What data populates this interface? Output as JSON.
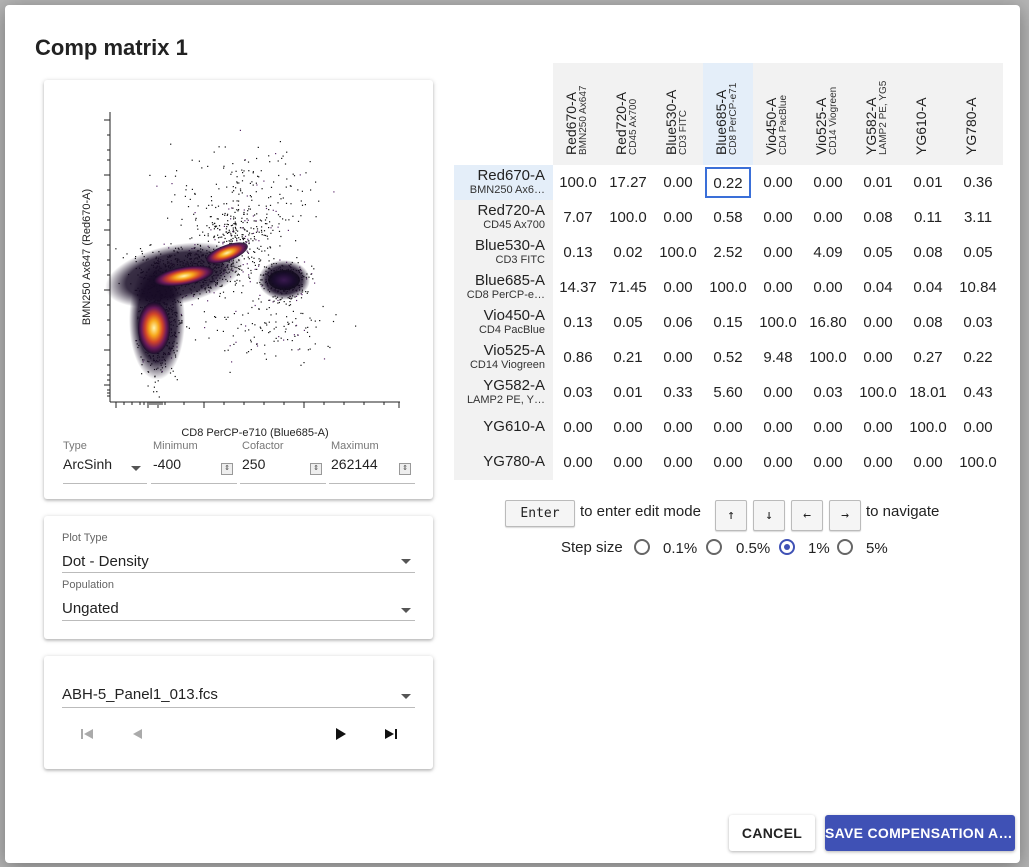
{
  "dialog": {
    "title": "Comp matrix 1"
  },
  "plot": {
    "x_label": "CD8 PerCP-e710 (Blue685-A)",
    "y_label": "BMN250 Ax647 (Red670-A)"
  },
  "axis_settings": {
    "type_label": "Type",
    "type_value": "ArcSinh",
    "min_label": "Minimum",
    "min_value": "-400",
    "cof_label": "Cofactor",
    "cof_value": "250",
    "max_label": "Maximum",
    "max_value": "262144"
  },
  "plot_options": {
    "plot_type_label": "Plot Type",
    "plot_type_value": "Dot - Density",
    "population_label": "Population",
    "population_value": "Ungated"
  },
  "file": {
    "name": "ABH-5_Panel1_013.fcs"
  },
  "matrix": {
    "columns": [
      {
        "main": "Red670-A",
        "sub": "BMN250 Ax647"
      },
      {
        "main": "Red720-A",
        "sub": "CD45 Ax700"
      },
      {
        "main": "Blue530-A",
        "sub": "CD3 FITC"
      },
      {
        "main": "Blue685-A",
        "sub": "CD8 PerCP-e71"
      },
      {
        "main": "Vio450-A",
        "sub": "CD4 PacBlue"
      },
      {
        "main": "Vio525-A",
        "sub": "CD14 Viogreen"
      },
      {
        "main": "YG582-A",
        "sub": "LAMP2 PE, YG5"
      },
      {
        "main": "YG610-A",
        "sub": ""
      },
      {
        "main": "YG780-A",
        "sub": ""
      }
    ],
    "rows": [
      {
        "main": "Red670-A",
        "sub": "BMN250 Ax6…",
        "values": [
          "100.0",
          "17.27",
          "0.00",
          "0.22",
          "0.00",
          "0.00",
          "0.01",
          "0.01",
          "0.36"
        ]
      },
      {
        "main": "Red720-A",
        "sub": "CD45 Ax700",
        "values": [
          "7.07",
          "100.0",
          "0.00",
          "0.58",
          "0.00",
          "0.00",
          "0.08",
          "0.11",
          "3.11"
        ]
      },
      {
        "main": "Blue530-A",
        "sub": "CD3 FITC",
        "values": [
          "0.13",
          "0.02",
          "100.0",
          "2.52",
          "0.00",
          "4.09",
          "0.05",
          "0.08",
          "0.05"
        ]
      },
      {
        "main": "Blue685-A",
        "sub": "CD8 PerCP-e…",
        "values": [
          "14.37",
          "71.45",
          "0.00",
          "100.0",
          "0.00",
          "0.00",
          "0.04",
          "0.04",
          "10.84"
        ]
      },
      {
        "main": "Vio450-A",
        "sub": "CD4 PacBlue",
        "values": [
          "0.13",
          "0.05",
          "0.06",
          "0.15",
          "100.0",
          "16.80",
          "0.00",
          "0.08",
          "0.03"
        ]
      },
      {
        "main": "Vio525-A",
        "sub": "CD14 Viogreen",
        "values": [
          "0.86",
          "0.21",
          "0.00",
          "0.52",
          "9.48",
          "100.0",
          "0.00",
          "0.27",
          "0.22"
        ]
      },
      {
        "main": "YG582-A",
        "sub": "LAMP2 PE, Y…",
        "values": [
          "0.03",
          "0.01",
          "0.33",
          "5.60",
          "0.00",
          "0.03",
          "100.0",
          "18.01",
          "0.43"
        ]
      },
      {
        "main": "YG610-A",
        "sub": "",
        "values": [
          "0.00",
          "0.00",
          "0.00",
          "0.00",
          "0.00",
          "0.00",
          "0.00",
          "100.0",
          "0.00"
        ]
      },
      {
        "main": "YG780-A",
        "sub": "",
        "values": [
          "0.00",
          "0.00",
          "0.00",
          "0.00",
          "0.00",
          "0.00",
          "0.00",
          "0.00",
          "100.0"
        ]
      }
    ]
  },
  "hints": {
    "enter_key": "Enter",
    "enter_text": "to enter edit mode",
    "up_key": "↑",
    "down_key": "↓",
    "left_key": "←",
    "right_key": "→",
    "navigate_text": "to navigate",
    "step_label": "Step size",
    "steps": [
      "0.1%",
      "0.5%",
      "1%",
      "5%"
    ],
    "selected_step": "1%"
  },
  "buttons": {
    "cancel": "CANCEL",
    "save": "SAVE COMPENSATION AS..."
  },
  "colors": {
    "accent": "#3f51b5",
    "selected_cell": "#3a6fd8"
  }
}
